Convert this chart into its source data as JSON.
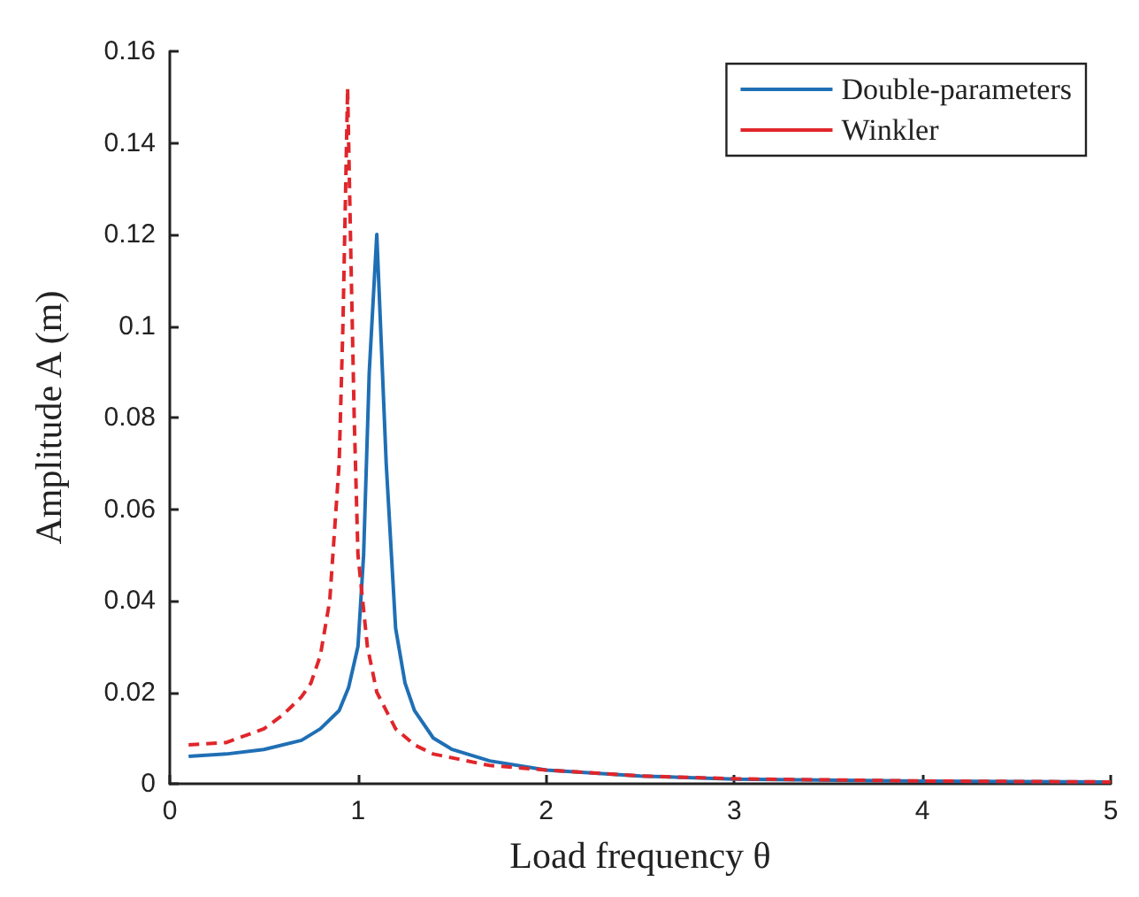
{
  "chart_data": {
    "type": "line",
    "xlabel": "Load frequency θ",
    "ylabel": "Amplitude A (m)",
    "xlim": [
      0,
      5
    ],
    "xticks": [
      0,
      1,
      2,
      3,
      4,
      5
    ],
    "ylim": [
      0,
      0.16
    ],
    "yticks": [
      0,
      0.02,
      0.04,
      0.06,
      0.08,
      {
        "value": 0.1,
        "label": "0.1"
      },
      0.12,
      0.14,
      0.16
    ],
    "grid": false,
    "legend": "top right",
    "marker": "none",
    "series": [
      {
        "name": "Double-parameters",
        "color": "#1f6fb5",
        "line_style": "solid",
        "x": [
          0.1,
          0.3,
          0.5,
          0.7,
          0.8,
          0.9,
          0.95,
          1.0,
          1.03,
          1.06,
          1.1,
          1.15,
          1.2,
          1.25,
          1.3,
          1.4,
          1.5,
          1.7,
          2.0,
          2.5,
          3.0,
          4.0,
          5.0
        ],
        "values": [
          0.006,
          0.0065,
          0.0075,
          0.0095,
          0.012,
          0.016,
          0.021,
          0.03,
          0.05,
          0.09,
          0.12,
          0.07,
          0.034,
          0.022,
          0.016,
          0.01,
          0.0075,
          0.005,
          0.003,
          0.0017,
          0.001,
          0.0006,
          0.0004
        ]
      },
      {
        "name": "Winkler",
        "color": "#e0262b",
        "line_style": "dashed",
        "x": [
          0.1,
          0.3,
          0.5,
          0.6,
          0.7,
          0.75,
          0.8,
          0.85,
          0.9,
          0.92,
          0.945,
          0.96,
          0.98,
          1.0,
          1.05,
          1.1,
          1.2,
          1.3,
          1.4,
          1.7,
          2.0,
          2.5,
          3.0,
          4.0,
          5.0
        ],
        "values": [
          0.0085,
          0.009,
          0.012,
          0.015,
          0.019,
          0.022,
          0.028,
          0.04,
          0.07,
          0.1,
          0.152,
          0.12,
          0.08,
          0.05,
          0.03,
          0.02,
          0.012,
          0.0085,
          0.0065,
          0.004,
          0.003,
          0.0017,
          0.0011,
          0.0006,
          0.0004
        ]
      }
    ]
  }
}
